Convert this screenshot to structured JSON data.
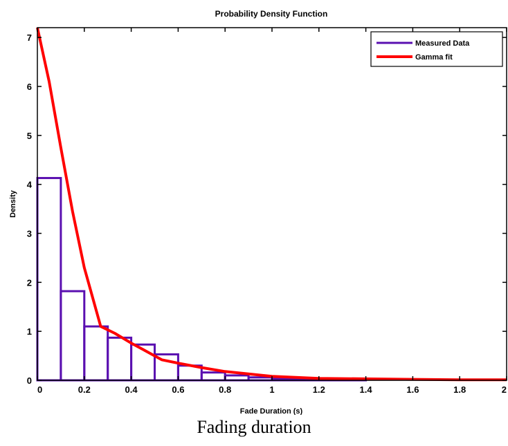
{
  "chart_data": {
    "type": "bar",
    "title": "Probability Density Function",
    "xlabel": "Fade Duration (s)",
    "ylabel": "Density",
    "xlim": [
      0,
      2
    ],
    "ylim": [
      0,
      7.2
    ],
    "xticks": [
      0,
      0.2,
      0.4,
      0.6,
      0.8,
      1,
      1.2,
      1.4,
      1.6,
      1.8,
      2
    ],
    "xtick_labels": [
      "0",
      "0.2",
      "0.4",
      "0.6",
      "0.8",
      "1",
      "1.2",
      "1.4",
      "1.6",
      "1.8",
      "2"
    ],
    "yticks": [
      0,
      1,
      2,
      3,
      4,
      5,
      6,
      7
    ],
    "ytick_labels": [
      "0",
      "1",
      "2",
      "3",
      "4",
      "5",
      "6",
      "7"
    ],
    "grid": false,
    "legend_position": "top-right",
    "histogram": {
      "name": "Measured Data",
      "color": "#5a0fb0",
      "bin_edges": [
        0,
        0.1,
        0.2,
        0.3,
        0.4,
        0.5,
        0.6,
        0.7,
        0.8,
        0.9,
        1.0,
        1.1,
        1.2,
        1.3,
        1.4
      ],
      "values": [
        4.13,
        1.82,
        1.1,
        0.87,
        0.73,
        0.53,
        0.3,
        0.16,
        0.1,
        0.06,
        0.04,
        0.03,
        0.02,
        0.02
      ]
    },
    "fit": {
      "name": "Gamma fit",
      "color": "#ff0000",
      "x": [
        0,
        0.05,
        0.1,
        0.15,
        0.2,
        0.27,
        0.33,
        0.4,
        0.45,
        0.53,
        0.6,
        0.7,
        0.8,
        0.9,
        1.0,
        1.1,
        1.2,
        1.4,
        1.6,
        1.8,
        2.0
      ],
      "y": [
        7.2,
        6.1,
        4.75,
        3.45,
        2.3,
        1.1,
        0.96,
        0.76,
        0.63,
        0.42,
        0.35,
        0.26,
        0.18,
        0.13,
        0.08,
        0.06,
        0.04,
        0.03,
        0.02,
        0.01,
        0.01
      ]
    }
  },
  "caption": "Fading duration"
}
